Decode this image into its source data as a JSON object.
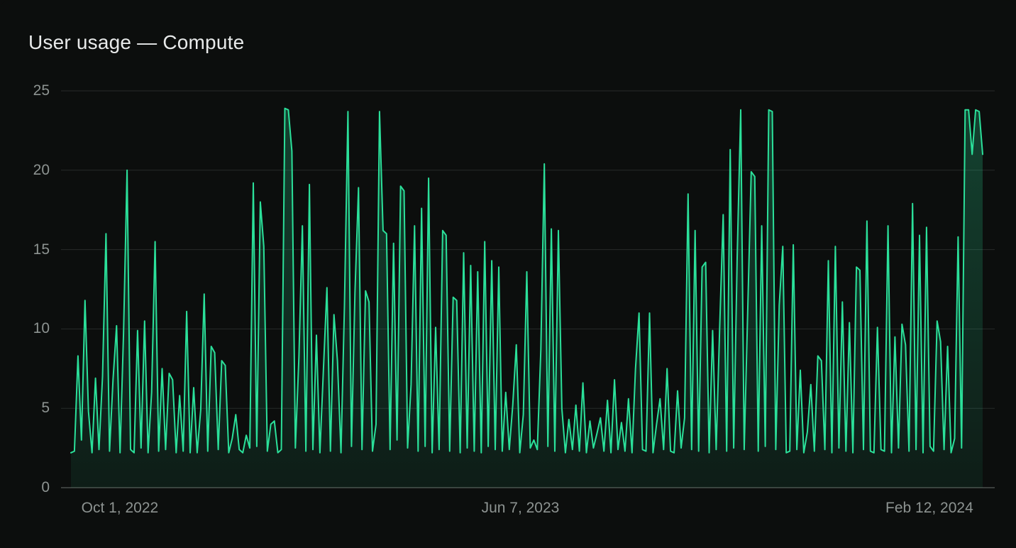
{
  "card": {
    "title": "User usage — Compute"
  },
  "colors": {
    "background": "#0c0e0d",
    "title_text": "#e8eaea",
    "tick_label": "#8d9391",
    "grid_line": "#272b2a",
    "zero_axis_line": "#4a4f4d",
    "line": "#2be09a",
    "fill_top": "rgba(43,224,154,0.26)",
    "fill_bottom": "rgba(43,224,154,0.07)"
  },
  "chart_data": {
    "type": "area",
    "title": "User usage — Compute",
    "xlabel": "",
    "ylabel": "",
    "ylim": [
      0,
      25
    ],
    "y_ticks": [
      0,
      5,
      10,
      15,
      20,
      25
    ],
    "x_ticks": [
      {
        "label": "Oct 1, 2022",
        "pos": 0.063
      },
      {
        "label": "Jun 7, 2023",
        "pos": 0.492
      },
      {
        "label": "Feb 12, 2024",
        "pos": 0.93
      }
    ],
    "grid": true,
    "legend": false,
    "series": [
      {
        "name": "Compute",
        "values": [
          2.2,
          2.3,
          8.3,
          3.0,
          11.8,
          4.8,
          2.2,
          6.9,
          2.4,
          7.0,
          16.0,
          2.3,
          6.8,
          10.2,
          2.2,
          9.7,
          20.0,
          2.4,
          2.2,
          9.9,
          2.5,
          10.5,
          2.2,
          6.0,
          15.5,
          2.3,
          7.5,
          2.4,
          7.2,
          6.8,
          2.2,
          5.8,
          2.3,
          11.1,
          2.2,
          6.3,
          2.2,
          4.9,
          12.2,
          2.3,
          8.9,
          8.5,
          2.4,
          8.0,
          7.7,
          2.2,
          3.1,
          4.6,
          2.4,
          2.2,
          3.3,
          2.5,
          19.2,
          2.6,
          18.0,
          15.2,
          2.3,
          4.0,
          4.2,
          2.2,
          2.4,
          23.9,
          23.8,
          21.2,
          2.5,
          8.2,
          16.5,
          2.3,
          19.1,
          2.4,
          9.6,
          2.2,
          7.4,
          12.6,
          2.3,
          10.9,
          8.0,
          2.2,
          11.5,
          23.7,
          2.6,
          12.3,
          18.9,
          2.4,
          12.4,
          11.7,
          2.3,
          4.0,
          23.7,
          16.2,
          16.0,
          2.4,
          15.4,
          3.0,
          19.0,
          18.7,
          2.5,
          6.5,
          16.5,
          2.3,
          17.6,
          2.6,
          19.5,
          2.2,
          10.1,
          2.4,
          16.2,
          15.9,
          2.3,
          12.0,
          11.8,
          2.2,
          14.8,
          2.5,
          14.0,
          2.3,
          13.6,
          2.2,
          15.5,
          2.6,
          14.3,
          2.4,
          13.9,
          2.3,
          6.0,
          2.4,
          5.2,
          9.0,
          2.2,
          4.6,
          13.6,
          2.5,
          3.0,
          2.4,
          8.7,
          20.4,
          2.6,
          16.3,
          2.3,
          16.2,
          5.0,
          2.2,
          4.3,
          2.4,
          5.2,
          2.3,
          6.6,
          2.2,
          4.2,
          2.5,
          3.4,
          4.4,
          2.3,
          5.5,
          2.2,
          6.8,
          2.4,
          4.1,
          2.3,
          5.6,
          2.2,
          7.5,
          11.0,
          2.4,
          2.3,
          11.0,
          2.2,
          4.0,
          5.6,
          2.4,
          7.5,
          2.3,
          2.2,
          6.1,
          2.5,
          4.4,
          18.5,
          2.4,
          16.2,
          2.3,
          13.9,
          14.2,
          2.2,
          9.9,
          2.4,
          10.0,
          17.2,
          2.3,
          21.3,
          2.5,
          14.5,
          23.8,
          2.4,
          11.2,
          19.9,
          19.6,
          2.3,
          16.5,
          2.6,
          23.8,
          23.7,
          2.4,
          11.5,
          15.2,
          2.2,
          2.3,
          15.3,
          2.4,
          7.4,
          2.2,
          3.5,
          6.5,
          2.3,
          8.3,
          8.0,
          2.4,
          14.3,
          2.2,
          15.2,
          2.5,
          11.7,
          2.3,
          10.4,
          2.2,
          13.9,
          13.7,
          2.4,
          16.8,
          2.3,
          2.2,
          10.1,
          2.4,
          2.3,
          16.5,
          2.2,
          9.5,
          2.5,
          10.3,
          9.0,
          2.3,
          17.9,
          2.4,
          15.9,
          2.2,
          16.4,
          2.6,
          2.3,
          10.5,
          9.2,
          2.4,
          8.9,
          2.2,
          3.1,
          15.8,
          2.5,
          23.8,
          23.8,
          21.0,
          23.8,
          23.7,
          21.0
        ]
      }
    ]
  }
}
